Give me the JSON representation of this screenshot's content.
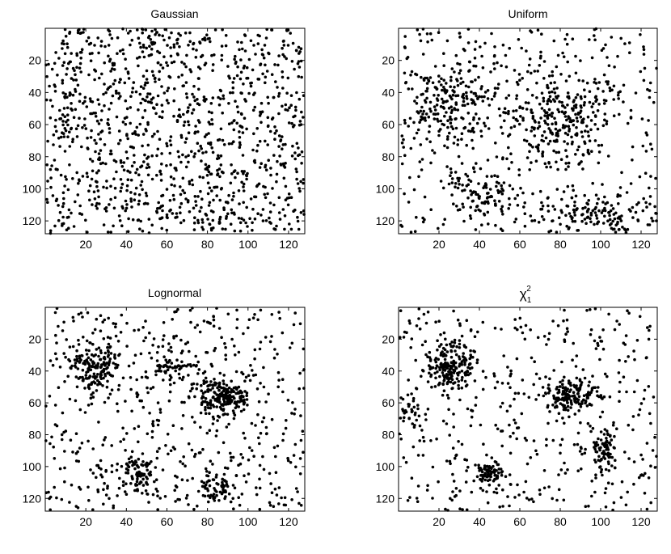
{
  "figure": {
    "panels": [
      {
        "title": "Gaussian",
        "title_sub": "",
        "title_sup": ""
      },
      {
        "title": "Uniform",
        "title_sub": "",
        "title_sup": ""
      },
      {
        "title": "Lognormal",
        "title_sub": "",
        "title_sup": ""
      },
      {
        "title": "χ",
        "title_sub": "1",
        "title_sup": "2"
      }
    ]
  },
  "chart_data": [
    {
      "type": "scatter",
      "title": "Gaussian",
      "xlabel": "",
      "ylabel": "",
      "xlim": [
        0,
        128
      ],
      "ylim": [
        128,
        0
      ],
      "y_axis_inverted": true,
      "xticks": [
        20,
        40,
        60,
        80,
        100,
        120
      ],
      "yticks": [
        20,
        40,
        60,
        80,
        100,
        120
      ],
      "grid": false,
      "marker_color": "#000000",
      "point_count_approx": 1200,
      "pattern": "spatially homogeneous random scatter covering the whole domain",
      "clusters": []
    },
    {
      "type": "scatter",
      "title": "Uniform",
      "xlabel": "",
      "ylabel": "",
      "xlim": [
        0,
        128
      ],
      "ylim": [
        128,
        0
      ],
      "y_axis_inverted": true,
      "xticks": [
        20,
        40,
        60,
        80,
        100,
        120
      ],
      "yticks": [
        20,
        40,
        60,
        80,
        100,
        120
      ],
      "grid": false,
      "marker_color": "#000000",
      "point_count_approx": 1050,
      "pattern": "scatter with moderate clumping and some empty regions",
      "clusters": [
        {
          "x": 25,
          "y": 45,
          "sx": 14,
          "sy": 12,
          "weight": 0.18
        },
        {
          "x": 80,
          "y": 55,
          "sx": 12,
          "sy": 14,
          "weight": 0.22
        },
        {
          "x": 42,
          "y": 105,
          "sx": 9,
          "sy": 9,
          "weight": 0.1
        },
        {
          "x": 95,
          "y": 115,
          "sx": 14,
          "sy": 6,
          "weight": 0.1
        }
      ]
    },
    {
      "type": "scatter",
      "title": "Lognormal",
      "xlabel": "",
      "ylabel": "",
      "xlim": [
        0,
        128
      ],
      "ylim": [
        128,
        0
      ],
      "y_axis_inverted": true,
      "xticks": [
        20,
        40,
        60,
        80,
        100,
        120
      ],
      "yticks": [
        20,
        40,
        60,
        80,
        100,
        120
      ],
      "grid": false,
      "marker_color": "#000000",
      "point_count_approx": 1100,
      "pattern": "strongly clustered scatter",
      "clusters": [
        {
          "x": 25,
          "y": 38,
          "sx": 6,
          "sy": 9,
          "weight": 0.16
        },
        {
          "x": 87,
          "y": 56,
          "sx": 7,
          "sy": 6,
          "weight": 0.2
        },
        {
          "x": 45,
          "y": 105,
          "sx": 5,
          "sy": 6,
          "weight": 0.08
        },
        {
          "x": 85,
          "y": 112,
          "sx": 5,
          "sy": 5,
          "weight": 0.05
        },
        {
          "x": 62,
          "y": 38,
          "sx": 5,
          "sy": 4,
          "weight": 0.04
        }
      ]
    },
    {
      "type": "scatter",
      "title": "χ₁²",
      "xlabel": "",
      "ylabel": "",
      "xlim": [
        0,
        128
      ],
      "ylim": [
        128,
        0
      ],
      "y_axis_inverted": true,
      "xticks": [
        20,
        40,
        60,
        80,
        100,
        120
      ],
      "yticks": [
        20,
        40,
        60,
        80,
        100,
        120
      ],
      "grid": false,
      "marker_color": "#000000",
      "point_count_approx": 950,
      "pattern": "very strongly clustered scatter",
      "clusters": [
        {
          "x": 27,
          "y": 38,
          "sx": 6,
          "sy": 8,
          "weight": 0.2
        },
        {
          "x": 85,
          "y": 55,
          "sx": 7,
          "sy": 5,
          "weight": 0.18
        },
        {
          "x": 102,
          "y": 90,
          "sx": 3,
          "sy": 7,
          "weight": 0.08
        },
        {
          "x": 45,
          "y": 105,
          "sx": 4,
          "sy": 4,
          "weight": 0.07
        },
        {
          "x": 5,
          "y": 65,
          "sx": 3,
          "sy": 6,
          "weight": 0.03
        }
      ]
    }
  ]
}
